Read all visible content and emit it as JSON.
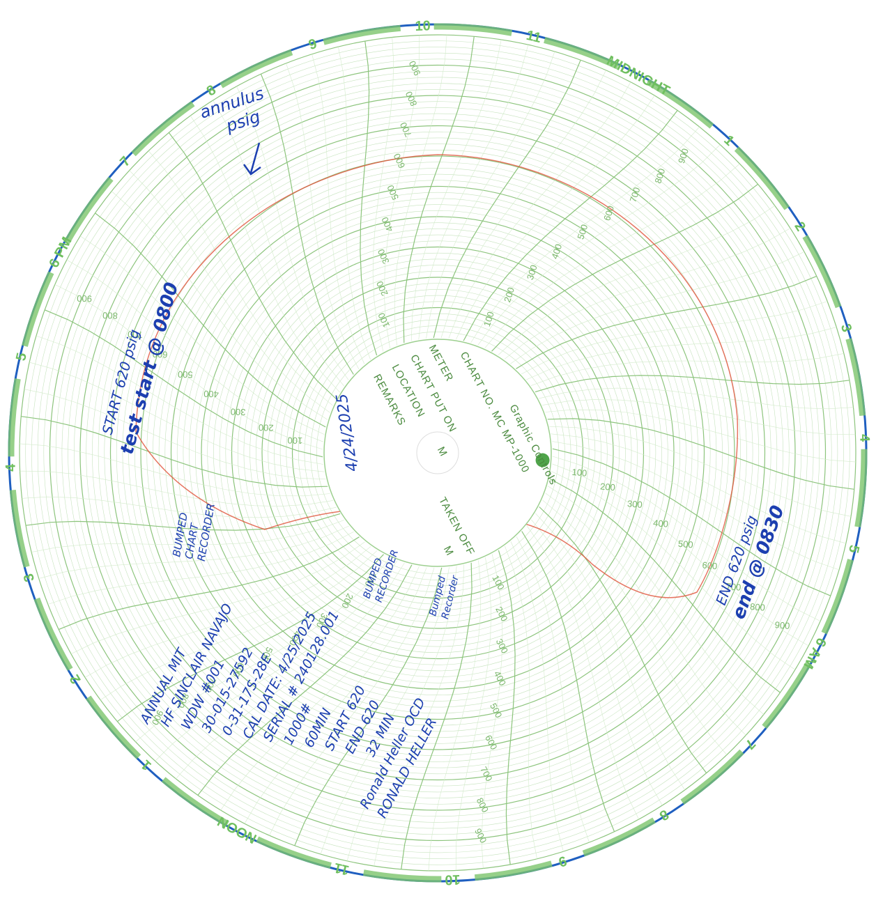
{
  "rim_labels": [
    "10",
    "11",
    "MIDNIGHT",
    "1",
    "2",
    "3",
    "4",
    "5",
    "6 AM",
    "7",
    "8",
    "9",
    "10",
    "11",
    "NOON",
    "1",
    "2",
    "3",
    "4",
    "5",
    "6 PM",
    "7",
    "8",
    "9"
  ],
  "scale_labels": [
    "100",
    "200",
    "300",
    "400",
    "500",
    "600",
    "700",
    "800",
    "900"
  ],
  "center": {
    "chart_no": "CHART NO. MC MP-1000",
    "maker": "Graphic Controls",
    "fields": [
      "METER",
      "CHART PUT ON",
      "LOCATION",
      "REMARKS",
      "TAKEN OFF"
    ],
    "period": "M",
    "date": "4/24/2025"
  },
  "notes": {
    "annulus": [
      "annulus",
      "psig"
    ],
    "start": [
      "START 620 psig",
      "test start @ 0800"
    ],
    "end": [
      "END 620 psig",
      "end @ 0830"
    ],
    "bumped_1": [
      "BUMPED",
      "CHART",
      "RECORDER"
    ],
    "bumped_2": [
      "BUMPED",
      "RECORDER"
    ],
    "bumped_3": [
      "Bumped",
      "Recorder"
    ],
    "record": [
      "ANNUAL MIT",
      "HF SINCLAIR NAVAJO",
      "WDW #001",
      "30-015-27592",
      "0-31-17S-28E",
      "CAL DATE: 4/25/2025",
      "SERIAL # 240128.001",
      "1000#",
      "60MIN",
      "START 620",
      "END 620",
      "32 MIN",
      "Ronald Heller OCD",
      "RONALD HELLER"
    ]
  }
}
